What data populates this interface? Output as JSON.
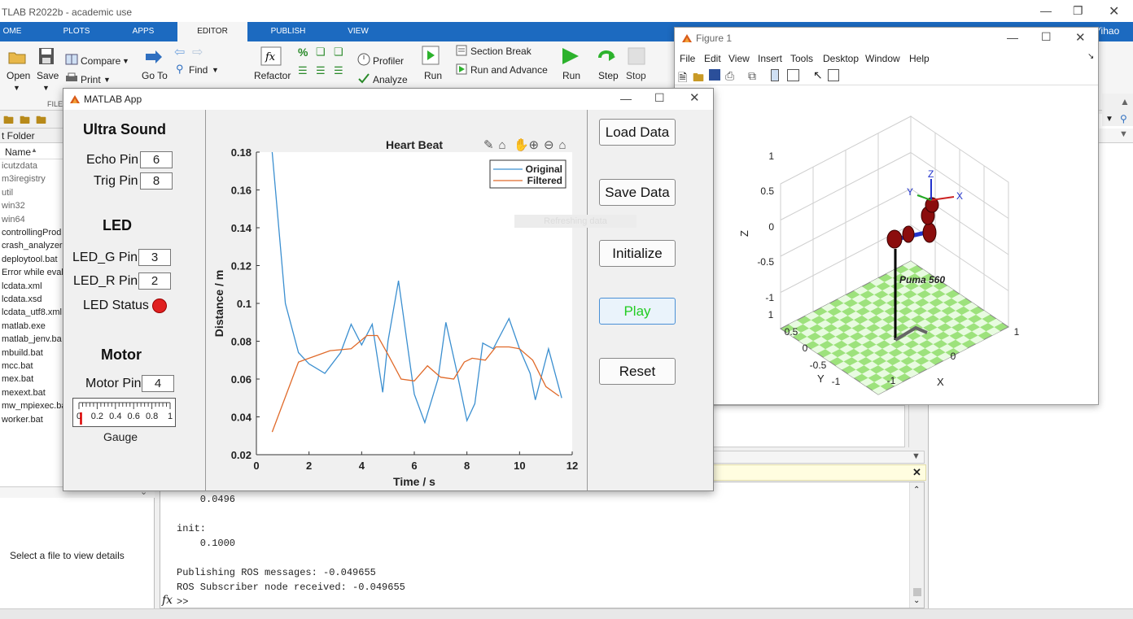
{
  "main": {
    "title": "TLAB R2022b - academic use",
    "user": "Yihao",
    "tabs": [
      "OME",
      "PLOTS",
      "APPS",
      "EDITOR",
      "PUBLISH",
      "VIEW"
    ],
    "toolstrip": {
      "open": "Open",
      "save": "Save",
      "compare": "Compare",
      "print": "Print",
      "goto": "Go To",
      "find": "Find",
      "refactor": "Refactor",
      "profiler": "Profiler",
      "analyze": "Analyze",
      "run_section": "Run",
      "section_break": "Section Break",
      "run_advance": "Run and Advance",
      "run": "Run",
      "step": "Step",
      "stop": "Stop",
      "file_group": "FILE",
      "percent": "%"
    }
  },
  "folder": {
    "header": "t Folder",
    "column": "Name",
    "items": [
      "icutzdata",
      "m3iregistry",
      "util",
      "win32",
      "win64",
      "controllingProd",
      "crash_analyzer.c",
      "deploytool.bat",
      "Error while eval",
      "lcdata.xml",
      "lcdata.xsd",
      "lcdata_utf8.xml",
      "matlab.exe",
      "matlab_jenv.ba",
      "mbuild.bat",
      "mcc.bat",
      "mex.bat",
      "mexext.bat",
      "mw_mpiexec.ba",
      "worker.bat"
    ],
    "details_text": "Select a file to view details"
  },
  "cmd": {
    "lines": [
      "    0.0496",
      "",
      "init:",
      "    0.1000",
      "",
      "Publishing ROS messages: -0.049655",
      "ROS Subscriber node received: -0.049655"
    ],
    "prompt": ">>",
    "fx": "fx"
  },
  "figure": {
    "title": "Figure 1",
    "menu": [
      "File",
      "Edit",
      "View",
      "Insert",
      "Tools",
      "Desktop",
      "Window",
      "Help"
    ],
    "robot_label": "Puma 560",
    "z_label": "Z",
    "x_label": "X",
    "y_label": "Y",
    "z_ticks": [
      "1",
      "0.5",
      "0",
      "-0.5",
      "-1"
    ],
    "y_ticks": [
      "1",
      "0.5",
      "0",
      "-0.5",
      "-1"
    ],
    "x_ticks": [
      "-1",
      "0",
      "1"
    ],
    "frame_x": "X",
    "frame_y": "Y",
    "frame_z": "Z"
  },
  "app": {
    "title": "MATLAB App",
    "ultrasound_title": "Ultra Sound",
    "echo_label": "Echo Pin",
    "echo_value": "6",
    "trig_label": "Trig Pin",
    "trig_value": "8",
    "led_title": "LED",
    "led_g_label": "LED_G Pin",
    "led_g_value": "3",
    "led_r_label": "LED_R Pin",
    "led_r_value": "2",
    "led_status_label": "LED Status",
    "led_color": "#e02020",
    "motor_title": "Motor",
    "motor_label": "Motor Pin",
    "motor_value": "4",
    "gauge_label": "Gauge",
    "gauge_ticks": [
      "0",
      "0.2",
      "0.4",
      "0.6",
      "0.8",
      "1"
    ],
    "gauge_value": 0.02,
    "buttons": {
      "load": "Load Data",
      "save": "Save Data",
      "init": "Initialize",
      "play": "Play",
      "reset": "Reset"
    },
    "play_color": "#22cc22",
    "ghost_text": "Refreshing data"
  },
  "chart_data": {
    "type": "line",
    "title": "Heart Beat",
    "xlabel": "Time / s",
    "ylabel": "Distance / m",
    "xlim": [
      0,
      12
    ],
    "ylim": [
      0.02,
      0.18
    ],
    "xticks": [
      "0",
      "2",
      "4",
      "6",
      "8",
      "10",
      "12"
    ],
    "yticks": [
      "0.02",
      "0.04",
      "0.06",
      "0.08",
      "0.1",
      "0.12",
      "0.14",
      "0.16",
      "0.18"
    ],
    "legend": "top-right",
    "series": [
      {
        "name": "Original",
        "color": "#3b8fd0",
        "x": [
          0.6,
          1.1,
          1.6,
          2.0,
          2.6,
          3.2,
          3.6,
          4.0,
          4.4,
          4.8,
          5.0,
          5.4,
          5.8,
          6.0,
          6.4,
          6.9,
          7.2,
          7.6,
          8.0,
          8.3,
          8.6,
          9.0,
          9.6,
          10.0,
          10.4,
          10.6,
          11.1,
          11.6
        ],
        "y": [
          0.18,
          0.1,
          0.074,
          0.068,
          0.063,
          0.074,
          0.089,
          0.078,
          0.089,
          0.053,
          0.08,
          0.112,
          0.072,
          0.052,
          0.037,
          0.06,
          0.09,
          0.065,
          0.038,
          0.047,
          0.079,
          0.076,
          0.092,
          0.076,
          0.063,
          0.049,
          0.076,
          0.05
        ]
      },
      {
        "name": "Filtered",
        "color": "#e06a2a",
        "x": [
          0.6,
          1.6,
          2.2,
          2.8,
          3.6,
          4.2,
          4.6,
          5.0,
          5.5,
          6.0,
          6.5,
          7.0,
          7.5,
          7.9,
          8.2,
          8.7,
          9.1,
          9.6,
          10.0,
          10.5,
          11.0,
          11.5
        ],
        "y": [
          0.032,
          0.069,
          0.072,
          0.075,
          0.076,
          0.083,
          0.083,
          0.073,
          0.06,
          0.059,
          0.067,
          0.061,
          0.06,
          0.069,
          0.071,
          0.07,
          0.077,
          0.077,
          0.076,
          0.07,
          0.056,
          0.051
        ]
      }
    ]
  }
}
